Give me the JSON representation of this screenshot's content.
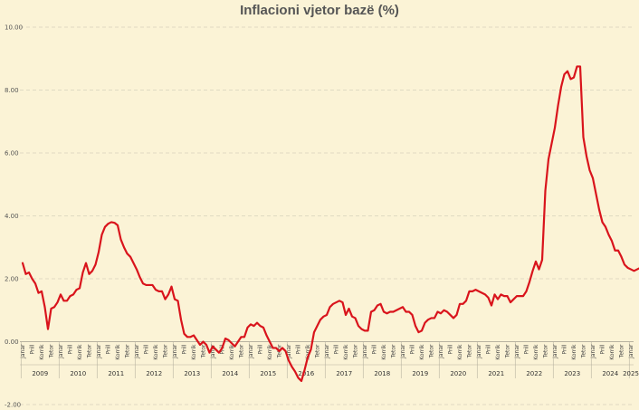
{
  "title": "Inflacioni vjetor bazë (%)",
  "colors": {
    "background": "#fbf3d6",
    "line": "#d9141c",
    "grid": "#d8d2bc",
    "axis": "#b8b2a0",
    "text": "#555555"
  },
  "chart_data": {
    "type": "line",
    "title": "Inflacioni vjetor bazë (%)",
    "xlabel": "",
    "ylabel": "",
    "ylim": [
      -2,
      10
    ],
    "y_ticks": [
      "-2.00",
      "0.00",
      "2.00",
      "4.00",
      "6.00",
      "8.00",
      "10.00"
    ],
    "grid": true,
    "legend": "none",
    "month_tick_labels": [
      "Janar",
      "Prill",
      "Korrik",
      "Tetor"
    ],
    "years": [
      "2009",
      "2010",
      "2011",
      "2012",
      "2013",
      "2014",
      "2015",
      "2016",
      "2017",
      "2018",
      "2019",
      "2020",
      "2021",
      "2022",
      "2023",
      "2024",
      "2025"
    ],
    "x_start": "2009-01",
    "series": [
      {
        "name": "",
        "values": [
          2.5,
          2.15,
          2.2,
          2.0,
          1.85,
          1.55,
          1.6,
          1.1,
          0.4,
          1.05,
          1.1,
          1.25,
          1.5,
          1.3,
          1.3,
          1.45,
          1.5,
          1.65,
          1.7,
          2.2,
          2.5,
          2.15,
          2.25,
          2.45,
          2.85,
          3.4,
          3.65,
          3.75,
          3.8,
          3.78,
          3.7,
          3.25,
          3.0,
          2.8,
          2.7,
          2.5,
          2.3,
          2.05,
          1.85,
          1.8,
          1.8,
          1.8,
          1.65,
          1.6,
          1.6,
          1.35,
          1.5,
          1.75,
          1.35,
          1.3,
          0.7,
          0.25,
          0.15,
          0.15,
          0.2,
          0.05,
          -0.1,
          0.0,
          -0.1,
          -0.35,
          -0.15,
          -0.25,
          -0.35,
          -0.2,
          0.1,
          0.05,
          -0.05,
          -0.15,
          0.0,
          0.15,
          0.15,
          0.45,
          0.55,
          0.5,
          0.6,
          0.5,
          0.45,
          0.2,
          0.0,
          -0.2,
          -0.2,
          -0.3,
          -0.2,
          -0.3,
          -0.6,
          -0.8,
          -0.95,
          -1.15,
          -1.25,
          -0.9,
          -0.5,
          -0.25,
          0.3,
          0.5,
          0.7,
          0.8,
          0.85,
          1.1,
          1.2,
          1.25,
          1.3,
          1.25,
          0.85,
          1.05,
          0.8,
          0.75,
          0.5,
          0.4,
          0.35,
          0.35,
          0.95,
          1.0,
          1.15,
          1.2,
          0.95,
          0.9,
          0.95,
          0.95,
          1.0,
          1.05,
          1.1,
          0.95,
          0.95,
          0.85,
          0.5,
          0.3,
          0.35,
          0.6,
          0.7,
          0.75,
          0.75,
          0.95,
          0.9,
          1.0,
          0.95,
          0.85,
          0.75,
          0.85,
          1.2,
          1.2,
          1.3,
          1.6,
          1.6,
          1.65,
          1.6,
          1.55,
          1.5,
          1.4,
          1.15,
          1.5,
          1.35,
          1.5,
          1.45,
          1.45,
          1.25,
          1.35,
          1.45,
          1.45,
          1.45,
          1.6,
          1.9,
          2.25,
          2.55,
          2.3,
          2.6,
          4.8,
          5.8,
          6.3,
          6.8,
          7.5,
          8.1,
          8.5,
          8.6,
          8.35,
          8.4,
          8.75,
          8.75,
          6.5,
          5.9,
          5.45,
          5.2,
          4.7,
          4.2,
          3.8,
          3.65,
          3.4,
          3.2,
          2.9,
          2.9,
          2.7,
          2.45,
          2.35,
          2.3,
          2.25,
          2.3,
          2.35,
          2.35,
          2.25,
          2.2,
          2.35,
          2.45,
          2.35
        ]
      }
    ]
  }
}
